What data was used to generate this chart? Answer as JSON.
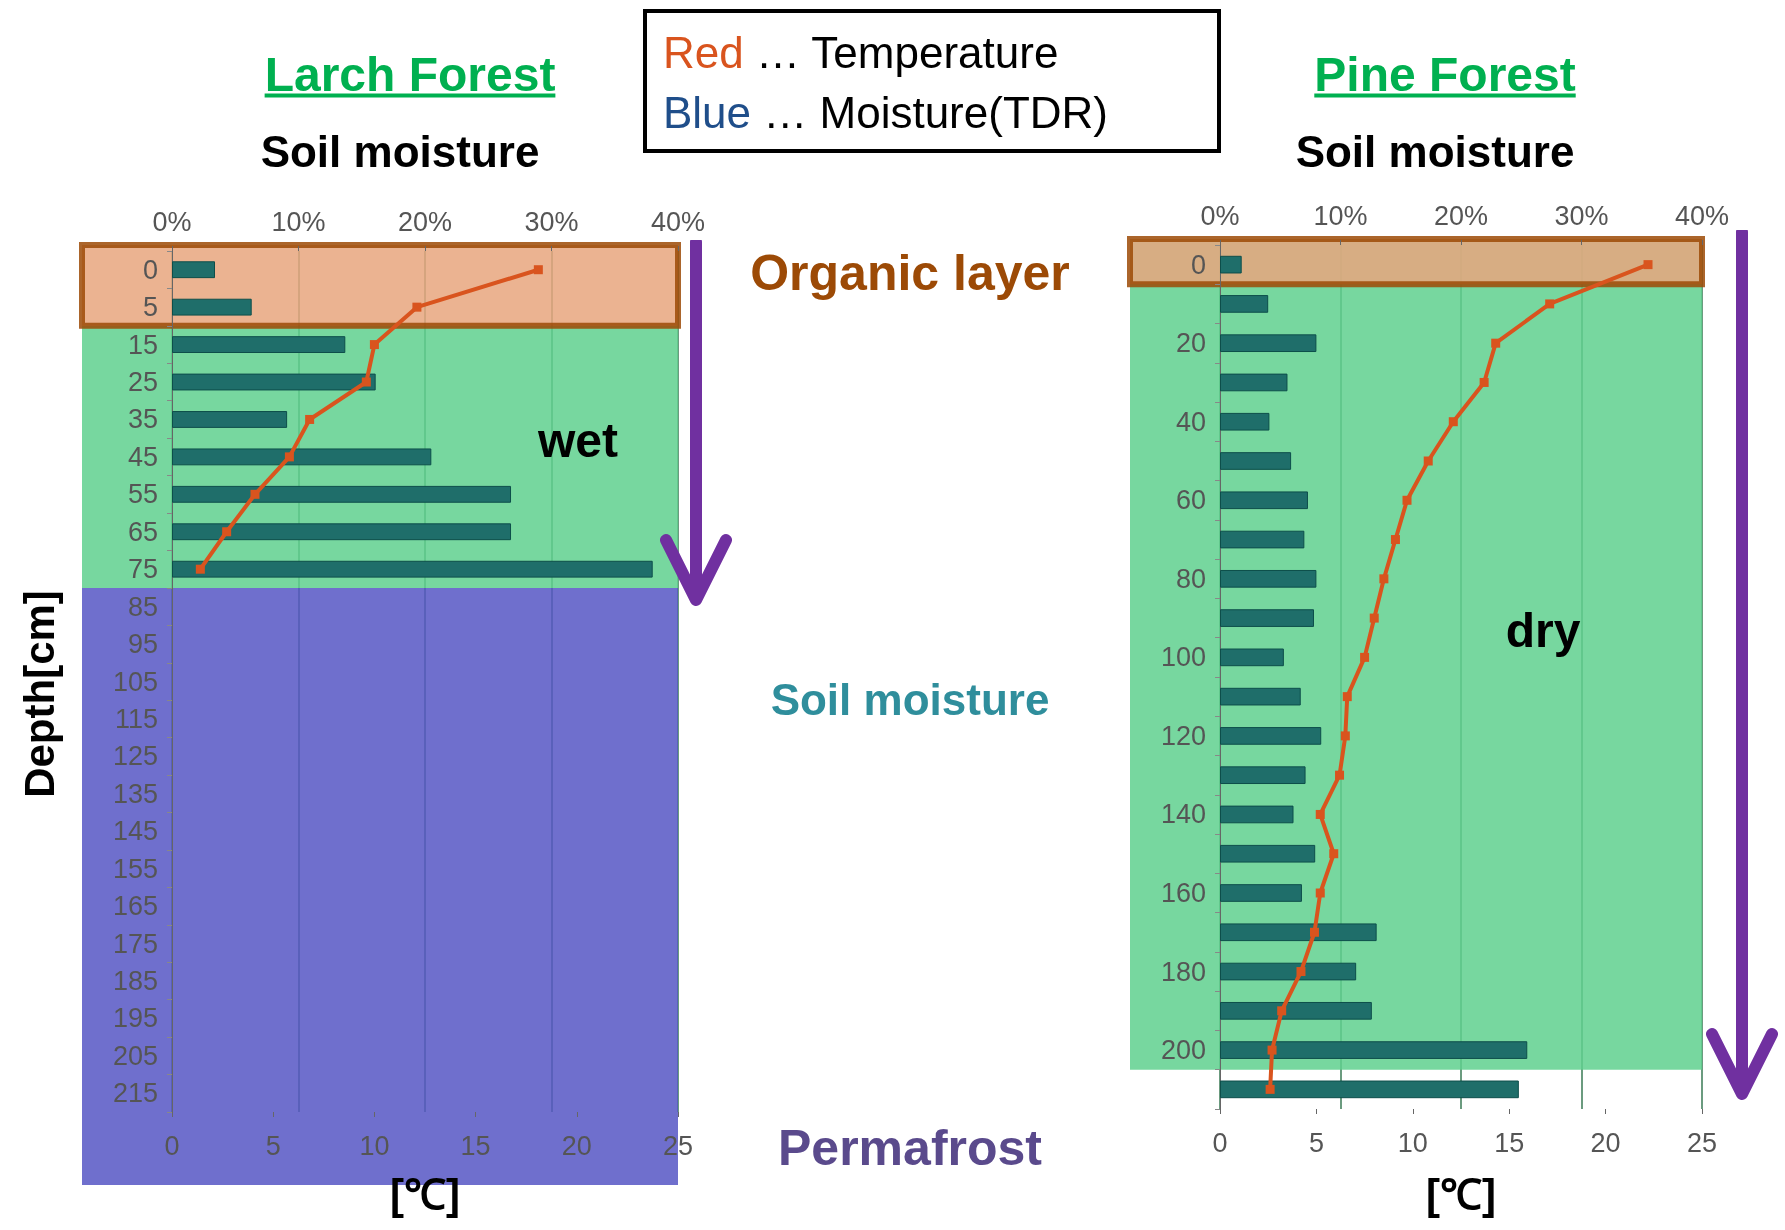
{
  "chart_data": [
    {
      "type": "bar",
      "orientation": "horizontal",
      "title": "Larch Forest",
      "x2label": "Soil moisture",
      "xlabel": "[℃]",
      "ylabel": "Depth[cm]",
      "categories": [
        "0",
        "5",
        "15",
        "25",
        "35",
        "45",
        "55",
        "65",
        "75",
        "85",
        "95",
        "105",
        "115",
        "125",
        "135",
        "145",
        "155",
        "165",
        "175",
        "185",
        "195",
        "205",
        "215"
      ],
      "x2lim": [
        0,
        40
      ],
      "x2ticks": [
        {
          "value": 0,
          "label": "0%"
        },
        {
          "value": 10,
          "label": "10%"
        },
        {
          "value": 20,
          "label": "20%"
        },
        {
          "value": 30,
          "label": "30%"
        },
        {
          "value": 40,
          "label": "40%"
        }
      ],
      "xlim": [
        0,
        25
      ],
      "xticks": [
        0,
        5,
        10,
        15,
        20,
        25
      ],
      "grid": "x",
      "marker": "square",
      "series": [
        {
          "axis": "x2",
          "color": "#1f6e6a",
          "values": [
            3.4,
            6.3,
            13.7,
            16.1,
            9.1,
            20.5,
            26.8,
            26.8,
            38.0,
            null,
            null,
            null,
            null,
            null,
            null,
            null,
            null,
            null,
            null,
            null,
            null,
            null,
            null
          ]
        },
        {
          "type": "line",
          "color": "#d9541e",
          "values": [
            18.1,
            12.1,
            10.0,
            9.6,
            6.8,
            5.8,
            4.1,
            2.7,
            1.4,
            null,
            null,
            null,
            null,
            null,
            null,
            null,
            null,
            null,
            null,
            null,
            null,
            null,
            null
          ]
        }
      ],
      "bands": [
        {
          "axis": "y",
          "from": "15",
          "to": "75",
          "color": "#5fd08e"
        },
        {
          "axis": "y",
          "from": "85",
          "to": "215",
          "color": "#5656c4"
        },
        {
          "axis": "y",
          "from": "0",
          "to": "5",
          "color": "#e8a67e"
        }
      ],
      "annotations": [
        "Red … Temperature",
        "Blue … Moisture(TDR)",
        "Organic layer",
        "Soil moisture",
        "Permafrost",
        "wet"
      ]
    },
    {
      "type": "bar",
      "orientation": "horizontal",
      "title": "Pine Forest",
      "x2label": "Soil moisture",
      "xlabel": "[℃]",
      "categories": [
        "0",
        null,
        "20",
        null,
        "40",
        null,
        "60",
        null,
        "80",
        null,
        "100",
        null,
        "120",
        null,
        "140",
        null,
        "160",
        null,
        "180",
        null,
        "200",
        null
      ],
      "x2lim": [
        0,
        40
      ],
      "x2ticks": [
        {
          "value": 0,
          "label": "0%"
        },
        {
          "value": 10,
          "label": "10%"
        },
        {
          "value": 20,
          "label": "20%"
        },
        {
          "value": 30,
          "label": "30%"
        },
        {
          "value": 40,
          "label": "40%"
        }
      ],
      "xlim": [
        0,
        25
      ],
      "xticks": [
        0,
        5,
        10,
        15,
        20,
        25
      ],
      "grid": "x",
      "marker": "square",
      "series": [
        {
          "axis": "x2",
          "color": "#1f6e6a",
          "values": [
            1.8,
            4.0,
            8.0,
            5.6,
            4.1,
            5.9,
            7.3,
            7.0,
            8.0,
            7.8,
            5.3,
            6.7,
            8.4,
            7.1,
            6.1,
            7.9,
            6.8,
            13.0,
            11.3,
            12.6,
            25.5,
            24.8
          ]
        },
        {
          "type": "line",
          "color": "#d9541e",
          "values": [
            22.2,
            17.1,
            14.3,
            13.7,
            12.1,
            10.8,
            9.7,
            9.1,
            8.5,
            8.0,
            7.5,
            6.6,
            6.5,
            6.2,
            5.2,
            5.9,
            5.2,
            4.9,
            4.2,
            3.2,
            2.7,
            2.6
          ]
        }
      ],
      "bands": [
        {
          "axis": "y",
          "from": "0",
          "to": "200",
          "color": "#5fd08e"
        },
        {
          "axis": "y",
          "from": "0",
          "to": "0",
          "color": "#e8a67e"
        }
      ],
      "annotations": [
        "dry"
      ]
    }
  ]
}
